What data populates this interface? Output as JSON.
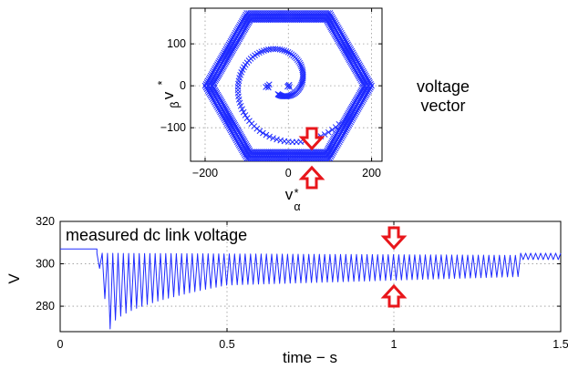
{
  "colors": {
    "series": "#1f2bff",
    "arrow": "#e8161b"
  },
  "chart_data": [
    {
      "type": "scatter",
      "title": "",
      "annotation_lines": [
        "voltage",
        "vector"
      ],
      "xlabel": {
        "symbol": "v",
        "superscript": "*",
        "subscript": "α"
      },
      "ylabel": {
        "symbol": "v",
        "superscript": "*",
        "subscript": "β"
      },
      "xlim": [
        -235,
        225
      ],
      "ylim": [
        -180,
        185
      ],
      "xticks": [
        -200,
        0,
        200
      ],
      "yticks": [
        -100,
        0,
        100
      ],
      "xtick_labels": [
        "−200",
        "0",
        "200"
      ],
      "ytick_labels": [
        "−100",
        "0",
        "100"
      ],
      "grid": true,
      "hexagon_radius": 200,
      "hexagon_clip": 175,
      "spiral_start": [
        0,
        0
      ],
      "spiral_end": [
        -50,
        0
      ],
      "marker": "x",
      "indicators": [
        "arrow-down-top",
        "arrow-up-bottom"
      ]
    },
    {
      "type": "line",
      "title": "measured dc link voltage",
      "xlabel": "time − s",
      "ylabel": "V",
      "xlim": [
        0,
        1.5
      ],
      "ylim": [
        268,
        320
      ],
      "xticks": [
        0,
        0.5,
        1,
        1.5
      ],
      "yticks": [
        280,
        300,
        320
      ],
      "xtick_labels": [
        "0",
        "0.5",
        "1",
        "1.5"
      ],
      "ytick_labels": [
        "280",
        "300",
        "320"
      ],
      "grid": true,
      "series": [
        {
          "segments": [
            {
              "t": [
                0,
                0.11
              ],
              "level": 307
            },
            {
              "t": [
                0.11,
                1.38
              ],
              "ripple_top_start": 305,
              "ripple_top_end": 304,
              "ripple_bottom_min": 269,
              "ripple_bottom_at_0_5": 290,
              "ripple_bottom_end": 294,
              "ripple_bottom_min_time": 0.15,
              "cycles": 80
            },
            {
              "t": [
                1.38,
                1.5
              ],
              "top": 305,
              "bottom": 302,
              "cycles": 16
            }
          ]
        }
      ],
      "indicators": [
        "arrow-down-top",
        "arrow-up-bottom"
      ]
    }
  ]
}
